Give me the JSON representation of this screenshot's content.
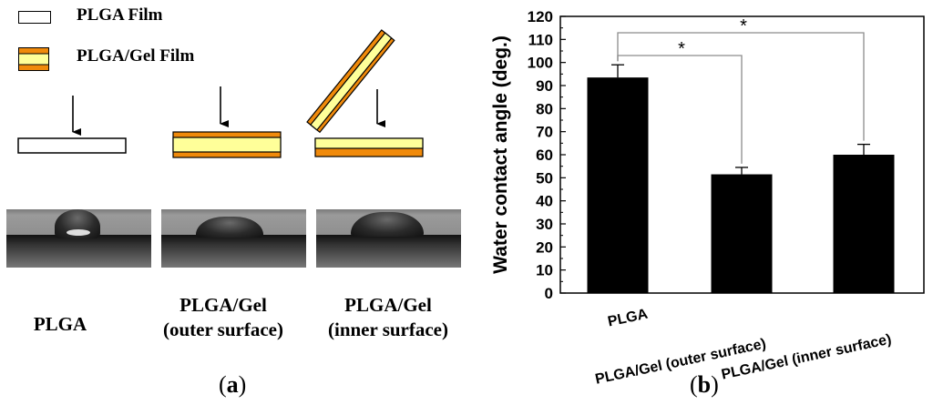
{
  "panel_a": {
    "legend": [
      {
        "label": "PLGA Film"
      },
      {
        "label": "PLGA/Gel Film"
      }
    ],
    "samples": [
      {
        "line1": "PLGA",
        "line2": ""
      },
      {
        "line1": "PLGA/Gel",
        "line2": "(outer surface)"
      },
      {
        "line1": "PLGA/Gel",
        "line2": "(inner surface)"
      }
    ],
    "caption_open": "(",
    "caption_letter": "a",
    "caption_close": ")"
  },
  "panel_b": {
    "caption_open": "(",
    "caption_letter": "b",
    "caption_close": ")"
  },
  "colors": {
    "orange": "#f08a0b",
    "yellow": "#ffff99",
    "bar": "#000000"
  },
  "chart_data": {
    "type": "bar",
    "title": "",
    "xlabel": "",
    "ylabel": "Water contact angle (deg.)",
    "categories": [
      "PLGA",
      "PLGA/Gel (outer surface)",
      "PLGA/Gel (inner surface)"
    ],
    "values": [
      93.5,
      51.5,
      60.0
    ],
    "errors": [
      5.5,
      3.0,
      4.5
    ],
    "ylim": [
      0,
      120
    ],
    "yticks": [
      0,
      10,
      20,
      30,
      40,
      50,
      60,
      70,
      80,
      90,
      100,
      110,
      120
    ],
    "significance": [
      {
        "from": "PLGA",
        "to": "PLGA/Gel (outer surface)",
        "label": "*"
      },
      {
        "from": "PLGA",
        "to": "PLGA/Gel (inner surface)",
        "label": "*"
      }
    ]
  }
}
